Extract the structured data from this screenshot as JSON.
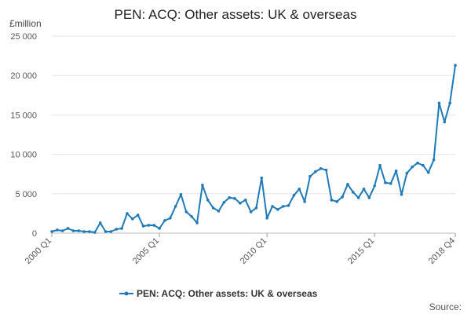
{
  "chart_data": {
    "type": "line",
    "title": "PEN: ACQ: Other assets: UK & overseas",
    "ylabel": "£million",
    "ylim": [
      0,
      25000
    ],
    "y_ticks": [
      0,
      5000,
      10000,
      15000,
      20000,
      25000
    ],
    "y_tick_labels": [
      "0",
      "5 000",
      "10 000",
      "15 000",
      "20 000",
      "25 000"
    ],
    "x_tick_labels": [
      "2000 Q1",
      "2005 Q1",
      "2010 Q1",
      "2015 Q1",
      "2018 Q4"
    ],
    "x_tick_index": [
      0,
      20,
      40,
      60,
      75
    ],
    "grid": true,
    "legend_position": "bottom",
    "series": [
      {
        "name": "PEN: ACQ: Other assets: UK & overseas",
        "color": "#1f7ab8",
        "x": [
          "2000 Q1",
          "2000 Q2",
          "2000 Q3",
          "2000 Q4",
          "2001 Q1",
          "2001 Q2",
          "2001 Q3",
          "2001 Q4",
          "2002 Q1",
          "2002 Q2",
          "2002 Q3",
          "2002 Q4",
          "2003 Q1",
          "2003 Q2",
          "2003 Q3",
          "2003 Q4",
          "2004 Q1",
          "2004 Q2",
          "2004 Q3",
          "2004 Q4",
          "2005 Q1",
          "2005 Q2",
          "2005 Q3",
          "2005 Q4",
          "2006 Q1",
          "2006 Q2",
          "2006 Q3",
          "2006 Q4",
          "2007 Q1",
          "2007 Q2",
          "2007 Q3",
          "2007 Q4",
          "2008 Q1",
          "2008 Q2",
          "2008 Q3",
          "2008 Q4",
          "2009 Q1",
          "2009 Q2",
          "2009 Q3",
          "2009 Q4",
          "2010 Q1",
          "2010 Q2",
          "2010 Q3",
          "2010 Q4",
          "2011 Q1",
          "2011 Q2",
          "2011 Q3",
          "2011 Q4",
          "2012 Q1",
          "2012 Q2",
          "2012 Q3",
          "2012 Q4",
          "2013 Q1",
          "2013 Q2",
          "2013 Q3",
          "2013 Q4",
          "2014 Q1",
          "2014 Q2",
          "2014 Q3",
          "2014 Q4",
          "2015 Q1",
          "2015 Q2",
          "2015 Q3",
          "2015 Q4",
          "2016 Q1",
          "2016 Q2",
          "2016 Q3",
          "2016 Q4",
          "2017 Q1",
          "2017 Q2",
          "2017 Q3",
          "2017 Q4",
          "2018 Q1",
          "2018 Q2",
          "2018 Q3",
          "2018 Q4"
        ],
        "values": [
          200,
          400,
          300,
          600,
          300,
          300,
          200,
          200,
          100,
          1300,
          200,
          200,
          500,
          600,
          2500,
          1800,
          2300,
          900,
          1000,
          1000,
          600,
          1600,
          1900,
          3400,
          4900,
          2700,
          2100,
          1300,
          6100,
          4200,
          3200,
          2800,
          3900,
          4500,
          4400,
          3800,
          4200,
          2700,
          3200,
          7000,
          1900,
          3400,
          3000,
          3400,
          3500,
          4800,
          5600,
          4000,
          7200,
          7800,
          8200,
          8000,
          4200,
          4000,
          4600,
          6200,
          5200,
          4500,
          5600,
          4500,
          6000,
          8600,
          6400,
          6300,
          7900,
          4900,
          7600,
          8400,
          8900,
          8600,
          7700,
          9300,
          16500,
          14100,
          16500,
          21300
        ]
      }
    ]
  },
  "source_label": "Source:"
}
